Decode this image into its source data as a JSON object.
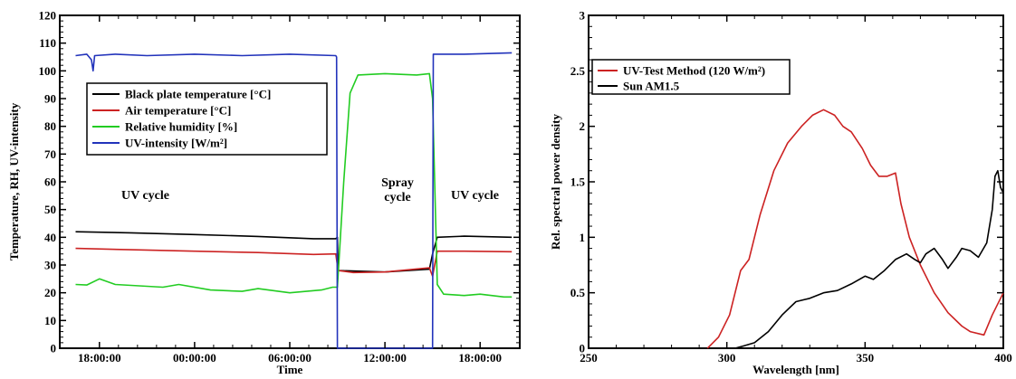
{
  "chart_data": [
    {
      "type": "line",
      "xlabel": "Time",
      "ylabel": "Temperature, RH, UV-intensity",
      "ylim": [
        0,
        120
      ],
      "xlim": [
        -2.5,
        26.5
      ],
      "x_unit": "hours since 18:00:00",
      "x_tick_labels": [
        "18:00:00",
        "00:00:00",
        "06:00:00",
        "12:00:00",
        "18:00:00"
      ],
      "x_tick_positions": [
        0,
        6,
        12,
        18,
        24
      ],
      "y_ticks": [
        0,
        10,
        20,
        30,
        40,
        50,
        60,
        70,
        80,
        90,
        100,
        110,
        120
      ],
      "legend_position": "upper-left",
      "annotations": [
        "UV cycle",
        "Spray cycle",
        "UV cycle"
      ],
      "annotation_spray_lines": [
        "Spray",
        "cycle"
      ],
      "series": [
        {
          "name": "Black plate temperature [°C]",
          "color": "#000000",
          "points": [
            [
              -1.5,
              42
            ],
            [
              2,
              41.6
            ],
            [
              6,
              41
            ],
            [
              10,
              40.3
            ],
            [
              13.5,
              39.5
            ],
            [
              14.9,
              39.5
            ],
            [
              15.0,
              40
            ],
            [
              15.05,
              28
            ],
            [
              18,
              27.5
            ],
            [
              20.8,
              28.5
            ],
            [
              21.0,
              34
            ],
            [
              21.3,
              40
            ],
            [
              23,
              40.4
            ],
            [
              26,
              40
            ]
          ]
        },
        {
          "name": "Air temperature [°C]",
          "color": "#cc2222",
          "points": [
            [
              -1.5,
              36
            ],
            [
              2,
              35.5
            ],
            [
              6,
              35
            ],
            [
              10,
              34.5
            ],
            [
              13.5,
              33.8
            ],
            [
              14.9,
              34
            ],
            [
              15.05,
              28
            ],
            [
              16,
              27.3
            ],
            [
              18,
              27.5
            ],
            [
              20.8,
              29
            ],
            [
              21.0,
              26
            ],
            [
              21.3,
              35
            ],
            [
              23,
              35
            ],
            [
              26,
              34.8
            ]
          ]
        },
        {
          "name": "Relative humidity [%]",
          "color": "#22cc22",
          "points": [
            [
              -1.5,
              23
            ],
            [
              -0.8,
              22.8
            ],
            [
              0,
              25
            ],
            [
              1,
              23
            ],
            [
              4,
              22
            ],
            [
              5,
              23
            ],
            [
              7,
              21
            ],
            [
              9,
              20.5
            ],
            [
              10,
              21.5
            ],
            [
              12,
              20
            ],
            [
              14,
              21
            ],
            [
              14.7,
              22
            ],
            [
              15.0,
              22
            ],
            [
              15.4,
              60
            ],
            [
              15.8,
              92
            ],
            [
              16.3,
              98.5
            ],
            [
              18,
              99
            ],
            [
              20,
              98.5
            ],
            [
              20.8,
              99
            ],
            [
              21.0,
              90
            ],
            [
              21.3,
              23
            ],
            [
              21.7,
              19.5
            ],
            [
              23,
              19
            ],
            [
              24,
              19.5
            ],
            [
              25.5,
              18.5
            ],
            [
              26,
              18.5
            ]
          ]
        },
        {
          "name": "UV-intensity [W/m²]",
          "color": "#2233bb",
          "points": [
            [
              -1.5,
              105.5
            ],
            [
              -0.8,
              106
            ],
            [
              -0.5,
              104
            ],
            [
              -0.4,
              100
            ],
            [
              -0.3,
              105.5
            ],
            [
              1,
              106
            ],
            [
              3,
              105.5
            ],
            [
              6,
              106
            ],
            [
              9,
              105.5
            ],
            [
              12,
              106
            ],
            [
              14.9,
              105.5
            ],
            [
              14.95,
              105
            ],
            [
              15.0,
              0
            ],
            [
              21.0,
              0
            ],
            [
              21.05,
              106
            ],
            [
              23,
              106
            ],
            [
              26,
              106.5
            ]
          ]
        }
      ]
    },
    {
      "type": "line",
      "xlabel": "Wavelength [nm]",
      "ylabel": "Rel. spectral power density",
      "xlim": [
        250,
        400
      ],
      "ylim": [
        0,
        3
      ],
      "x_ticks": [
        250,
        300,
        350,
        400
      ],
      "y_ticks": [
        0,
        0.5,
        1,
        1.5,
        2,
        2.5,
        3
      ],
      "y_tick_labels": [
        "0",
        "0.5",
        "1",
        "1.5",
        "2",
        "2.5",
        "3"
      ],
      "legend_position": "upper-left",
      "series": [
        {
          "name": "UV-Test Method (120 W/m²)",
          "color": "#cc2222",
          "points": [
            [
              293,
              0
            ],
            [
              297,
              0.1
            ],
            [
              301,
              0.3
            ],
            [
              305,
              0.7
            ],
            [
              308,
              0.8
            ],
            [
              312,
              1.2
            ],
            [
              317,
              1.6
            ],
            [
              322,
              1.85
            ],
            [
              327,
              2.0
            ],
            [
              331,
              2.1
            ],
            [
              335,
              2.15
            ],
            [
              339,
              2.1
            ],
            [
              342,
              2.0
            ],
            [
              345,
              1.95
            ],
            [
              349,
              1.8
            ],
            [
              352,
              1.65
            ],
            [
              355,
              1.55
            ],
            [
              358,
              1.55
            ],
            [
              361,
              1.58
            ],
            [
              363,
              1.3
            ],
            [
              366,
              1.0
            ],
            [
              370,
              0.75
            ],
            [
              375,
              0.5
            ],
            [
              380,
              0.32
            ],
            [
              385,
              0.2
            ],
            [
              388,
              0.15
            ],
            [
              393,
              0.12
            ],
            [
              396,
              0.3
            ],
            [
              400,
              0.5
            ]
          ]
        },
        {
          "name": "Sun AM1.5",
          "color": "#000000",
          "points": [
            [
              303,
              0
            ],
            [
              306,
              0.02
            ],
            [
              310,
              0.05
            ],
            [
              315,
              0.15
            ],
            [
              320,
              0.3
            ],
            [
              325,
              0.42
            ],
            [
              330,
              0.45
            ],
            [
              335,
              0.5
            ],
            [
              340,
              0.52
            ],
            [
              345,
              0.58
            ],
            [
              350,
              0.65
            ],
            [
              353,
              0.62
            ],
            [
              357,
              0.7
            ],
            [
              361,
              0.8
            ],
            [
              365,
              0.85
            ],
            [
              368,
              0.8
            ],
            [
              370,
              0.77
            ],
            [
              372,
              0.85
            ],
            [
              375,
              0.9
            ],
            [
              378,
              0.8
            ],
            [
              380,
              0.72
            ],
            [
              383,
              0.82
            ],
            [
              385,
              0.9
            ],
            [
              388,
              0.88
            ],
            [
              391,
              0.82
            ],
            [
              394,
              0.95
            ],
            [
              396,
              1.25
            ],
            [
              397,
              1.55
            ],
            [
              398,
              1.6
            ],
            [
              399,
              1.45
            ],
            [
              400,
              1.4
            ]
          ]
        }
      ]
    }
  ]
}
